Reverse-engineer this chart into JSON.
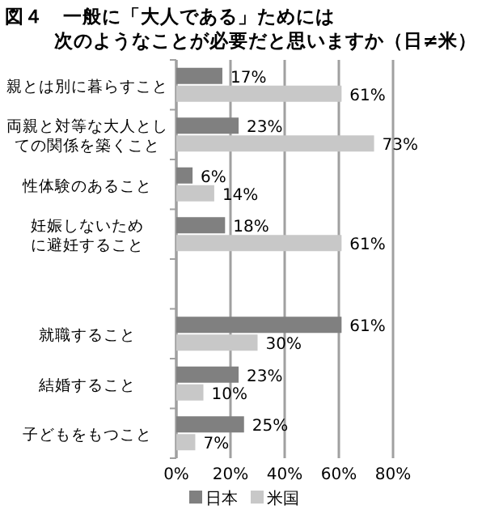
{
  "chart_data": {
    "type": "bar",
    "orientation": "horizontal",
    "title": "図４　一般に「大人である」ためには次のようなことが必要だと思いますか（日≠米）",
    "categories": [
      "親とは別に暮らすこと",
      "両親と対等な大人としての関係を築くこと",
      "性体験のあること",
      "妊娠しないために避妊すること",
      null,
      "就職すること",
      "結婚すること",
      "子どもをもつこと"
    ],
    "series": [
      {
        "name": "日本",
        "color": "#808080",
        "values": [
          17,
          23,
          6,
          18,
          null,
          61,
          23,
          25
        ],
        "value_labels": [
          "17%",
          "23%",
          "6%",
          "18%",
          null,
          "61%",
          "23%",
          "25%"
        ]
      },
      {
        "name": "米国",
        "color": "#c8c8c8",
        "values": [
          61,
          73,
          14,
          61,
          null,
          30,
          10,
          7
        ],
        "value_labels": [
          "61%",
          "73%",
          "14%",
          "61%",
          null,
          "30%",
          "10%",
          "7%"
        ]
      }
    ],
    "xlim": [
      0,
      80
    ],
    "xticks": [
      {
        "value": 0,
        "label": "0%"
      },
      {
        "value": 20,
        "label": "20%"
      },
      {
        "value": 40,
        "label": "40%"
      },
      {
        "value": 60,
        "label": "60%"
      },
      {
        "value": 80,
        "label": "80%"
      }
    ],
    "grid": "x",
    "legend": "bottom"
  }
}
